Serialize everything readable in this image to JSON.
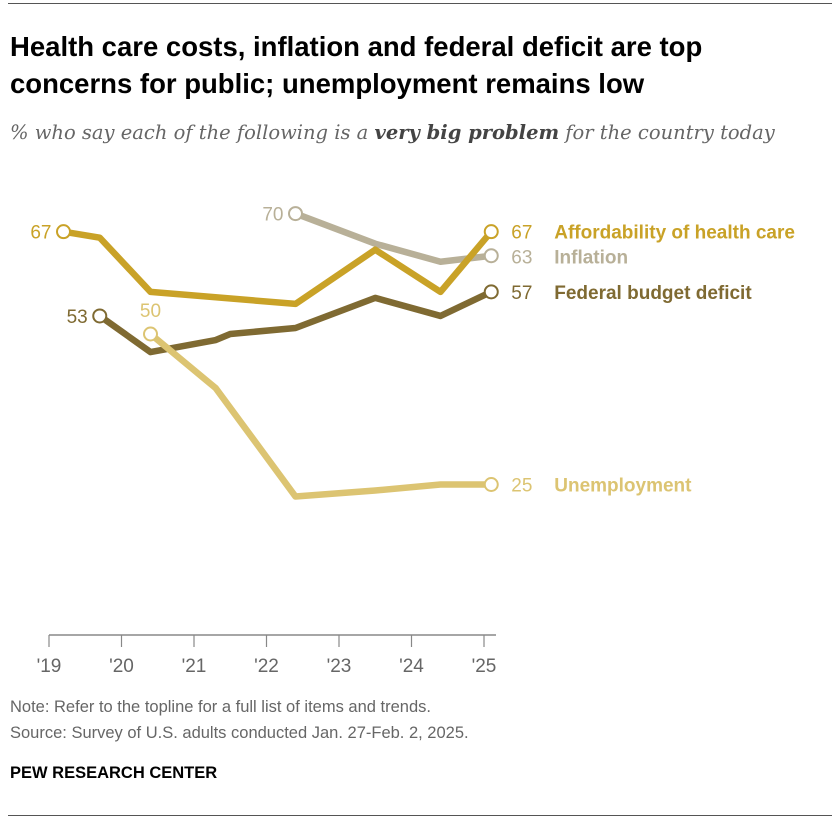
{
  "title": "Health care costs, inflation and federal deficit are top concerns for public; unemployment remains low",
  "subtitle": {
    "before": "% who say each of the following is a ",
    "emphasis": "very big problem",
    "after": " for the country today"
  },
  "note": "Note: Refer to the topline for a full list of items and trends.",
  "source": "Source: Survey of U.S. adults conducted Jan. 27-Feb. 2, 2025.",
  "brand": "PEW RESEARCH CENTER",
  "chart_data": {
    "type": "line",
    "xlabel": "",
    "ylabel": "",
    "ylim": [
      0,
      80
    ],
    "grid": false,
    "x_ticks": [
      2019,
      2020,
      2021,
      2022,
      2023,
      2024,
      2025
    ],
    "x_tick_labels": [
      "'19",
      "'20",
      "'21",
      "'22",
      "'23",
      "'24",
      "'25"
    ],
    "legend": "direct labels at line ends",
    "series": [
      {
        "name": "Affordability of health care",
        "color": "#c9a227",
        "x": [
          2019.2,
          2019.7,
          2020.4,
          2022.4,
          2023.5,
          2024.4,
          2025.1
        ],
        "values": [
          67,
          66,
          57,
          55,
          64,
          57,
          67
        ],
        "start_label": "67",
        "end_label": "67"
      },
      {
        "name": "Inflation",
        "color": "#b8b098",
        "x": [
          2022.4,
          2023.5,
          2024.4,
          2025.1
        ],
        "values": [
          70,
          65,
          62,
          63
        ],
        "start_label": "70",
        "end_label": "63"
      },
      {
        "name": "Federal budget deficit",
        "color": "#7f6a32",
        "x": [
          2019.7,
          2020.4,
          2021.3,
          2021.5,
          2022.4,
          2023.5,
          2024.4,
          2025.1
        ],
        "values": [
          53,
          47,
          49,
          50,
          51,
          56,
          53,
          57
        ],
        "start_label": "53",
        "end_label": "57"
      },
      {
        "name": "Unemployment",
        "color": "#dcc472",
        "x": [
          2020.4,
          2021.3,
          2022.4,
          2023.5,
          2024.4,
          2025.1
        ],
        "values": [
          50,
          41,
          23,
          24,
          25,
          25
        ],
        "start_label": "50",
        "end_label": "25"
      }
    ]
  }
}
